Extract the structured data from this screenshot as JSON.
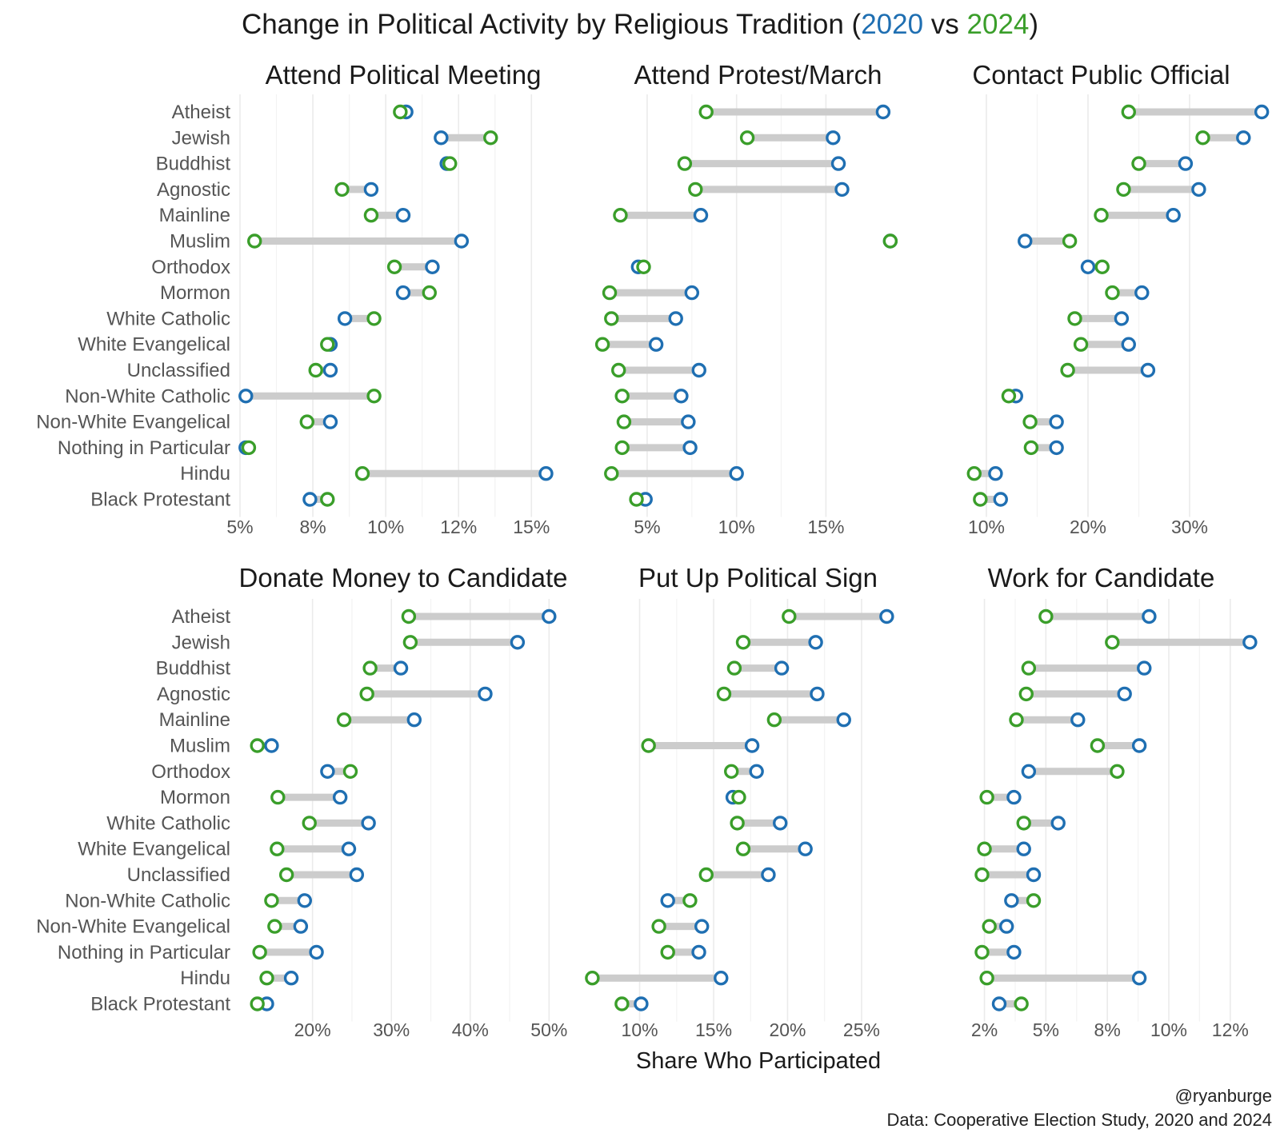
{
  "title": {
    "prefix": "Change in Political Activity by Religious Tradition (",
    "year_a": "2020",
    "mid": " vs ",
    "year_b": "2024",
    "suffix": ")"
  },
  "xlabel": "Share Who Participated",
  "credit": "@ryanburge",
  "source": "Data: Cooperative Election Study, 2020 and 2024",
  "colors": {
    "y2020": "#1f6fb2",
    "y2024": "#3a9e2a",
    "connector": "#cccccc",
    "grid": "#ebebeb"
  },
  "chart_data": {
    "type": "dumbbell",
    "categories": [
      "Atheist",
      "Jewish",
      "Buddhist",
      "Agnostic",
      "Mainline",
      "Muslim",
      "Orthodox",
      "Mormon",
      "White Catholic",
      "White Evangelical",
      "Unclassified",
      "Non-White Catholic",
      "Non-White Evangelical",
      "Nothing in Particular",
      "Hindu",
      "Black Protestant"
    ],
    "series_names": [
      "2020",
      "2024"
    ],
    "panels": [
      {
        "title": "Attend Political Meeting",
        "xlim": [
          5,
          16.2
        ],
        "ticks": [
          5,
          7.5,
          10,
          12.5,
          15
        ],
        "tick_labels": [
          "5%",
          "8%",
          "10%",
          "12%",
          "15%"
        ],
        "v2020": [
          10.7,
          11.9,
          12.1,
          9.5,
          10.6,
          12.6,
          11.6,
          10.6,
          8.6,
          8.1,
          8.1,
          5.2,
          8.1,
          5.2,
          15.5,
          7.4
        ],
        "v2024": [
          10.5,
          13.6,
          12.2,
          8.5,
          9.5,
          5.5,
          10.3,
          11.5,
          9.6,
          8.0,
          7.6,
          9.6,
          7.3,
          5.3,
          9.2,
          8.0
        ]
      },
      {
        "title": "Attend Protest/March",
        "xlim": [
          1.6,
          20.8
        ],
        "ticks": [
          5,
          10,
          15
        ],
        "tick_labels": [
          "5%",
          "10%",
          "15%"
        ],
        "v2020": [
          18.2,
          15.4,
          15.7,
          15.9,
          8.0,
          18.6,
          4.5,
          7.5,
          6.6,
          5.5,
          7.9,
          6.9,
          7.3,
          7.4,
          10.0,
          4.9
        ],
        "v2024": [
          8.3,
          10.6,
          7.1,
          7.7,
          3.5,
          18.6,
          4.8,
          2.9,
          3.0,
          2.5,
          3.4,
          3.6,
          3.7,
          3.6,
          3.0,
          4.4
        ]
      },
      {
        "title": "Contact Public Official",
        "xlim": [
          6.3,
          36.3
        ],
        "ticks": [
          10,
          20,
          30
        ],
        "tick_labels": [
          "10%",
          "20%",
          "30%"
        ],
        "v2020": [
          37.1,
          35.3,
          29.6,
          30.9,
          28.4,
          13.8,
          20.0,
          25.3,
          23.3,
          24.0,
          25.9,
          12.9,
          16.9,
          16.9,
          10.9,
          11.4
        ],
        "v2024": [
          24.0,
          31.3,
          25.0,
          23.5,
          21.3,
          18.2,
          21.4,
          22.4,
          18.7,
          19.3,
          18.0,
          12.2,
          14.3,
          14.4,
          8.8,
          9.4
        ]
      },
      {
        "title": "Donate Money to Candidate",
        "xlim": [
          10.8,
          52.2
        ],
        "ticks": [
          20,
          30,
          40,
          50
        ],
        "tick_labels": [
          "20%",
          "30%",
          "40%",
          "50%"
        ],
        "v2020": [
          50.0,
          46.0,
          31.2,
          41.9,
          32.9,
          14.8,
          21.9,
          23.5,
          27.1,
          24.6,
          25.6,
          19.0,
          18.5,
          20.5,
          17.3,
          14.2
        ],
        "v2024": [
          32.2,
          32.4,
          27.3,
          26.9,
          24.0,
          13.0,
          24.8,
          15.6,
          19.6,
          15.5,
          16.7,
          14.8,
          15.2,
          13.3,
          14.2,
          13.0
        ]
      },
      {
        "title": "Put Up Political Sign",
        "xlim": [
          6.4,
          29.6
        ],
        "ticks": [
          10,
          15,
          20,
          25
        ],
        "tick_labels": [
          "10%",
          "15%",
          "20%",
          "25%"
        ],
        "v2020": [
          26.7,
          21.9,
          19.6,
          22.0,
          23.8,
          17.6,
          17.9,
          16.3,
          19.5,
          21.2,
          18.7,
          11.9,
          14.2,
          14.0,
          15.5,
          10.1
        ],
        "v2024": [
          20.1,
          17.0,
          16.4,
          15.7,
          19.1,
          10.6,
          16.2,
          16.7,
          16.6,
          17.0,
          14.5,
          13.4,
          11.3,
          11.9,
          6.8,
          8.8
        ]
      },
      {
        "title": "Work for Candidate",
        "xlim": [
          1.05,
          13.45
        ],
        "ticks": [
          2.5,
          5,
          7.5,
          10,
          12.5
        ],
        "tick_labels": [
          "2%",
          "5%",
          "8%",
          "10%",
          "12%"
        ],
        "v2020": [
          9.2,
          13.3,
          9.0,
          8.2,
          6.3,
          8.8,
          4.3,
          3.7,
          5.5,
          4.1,
          4.5,
          3.6,
          3.4,
          3.7,
          8.8,
          3.1
        ],
        "v2024": [
          5.0,
          7.7,
          4.3,
          4.2,
          3.8,
          7.1,
          7.9,
          2.6,
          4.1,
          2.5,
          2.4,
          4.5,
          2.7,
          2.4,
          2.6,
          4.0
        ]
      }
    ]
  }
}
